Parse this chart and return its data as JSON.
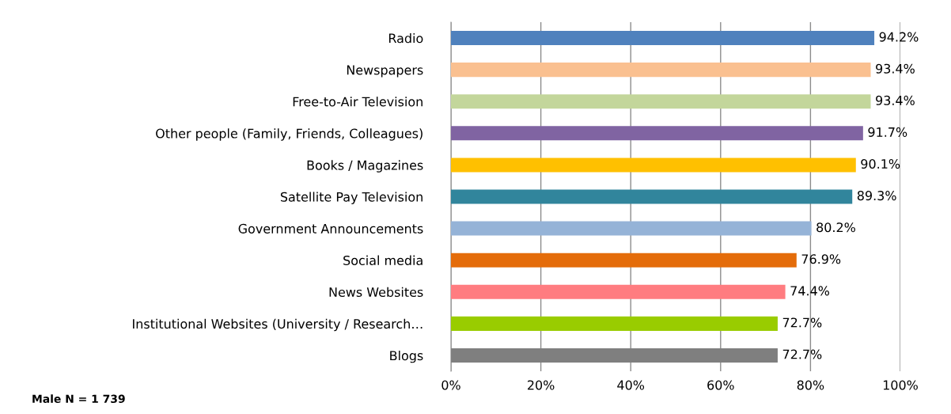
{
  "chart_data": {
    "type": "bar",
    "orientation": "horizontal",
    "categories": [
      "Radio",
      "Newspapers",
      "Free-to-Air Television",
      "Other people (Family, Friends, Colleagues)",
      "Books / Magazines",
      "Satellite Pay Television",
      "Government Announcements",
      "Social media",
      "News Websites",
      "Institutional Websites (University / Research…",
      "Blogs"
    ],
    "values": [
      94.2,
      93.4,
      93.4,
      91.7,
      90.1,
      89.3,
      80.2,
      76.9,
      74.4,
      72.7,
      72.7
    ],
    "colors": [
      "#4f81bd",
      "#fac090",
      "#c3d69b",
      "#8064a2",
      "#ffc000",
      "#31859c",
      "#95b3d7",
      "#e46c0a",
      "#ff7c80",
      "#99cc00",
      "#7f7f7f"
    ],
    "value_labels": [
      "94.2%",
      "93.4%",
      "93.4%",
      "91.7%",
      "90.1%",
      "89.3%",
      "80.2%",
      "76.9%",
      "74.4%",
      "72.7%",
      "72.7%"
    ],
    "xlim": [
      0,
      100
    ],
    "xticks": [
      {
        "value": 0,
        "label": "0%"
      },
      {
        "value": 20,
        "label": "20%"
      },
      {
        "value": 40,
        "label": "40%"
      },
      {
        "value": 60,
        "label": "60%"
      },
      {
        "value": 80,
        "label": "80%"
      },
      {
        "value": 100,
        "label": "100%"
      }
    ],
    "grid": "x",
    "legend": false,
    "annotations": [
      "Male N = 1 739"
    ]
  }
}
